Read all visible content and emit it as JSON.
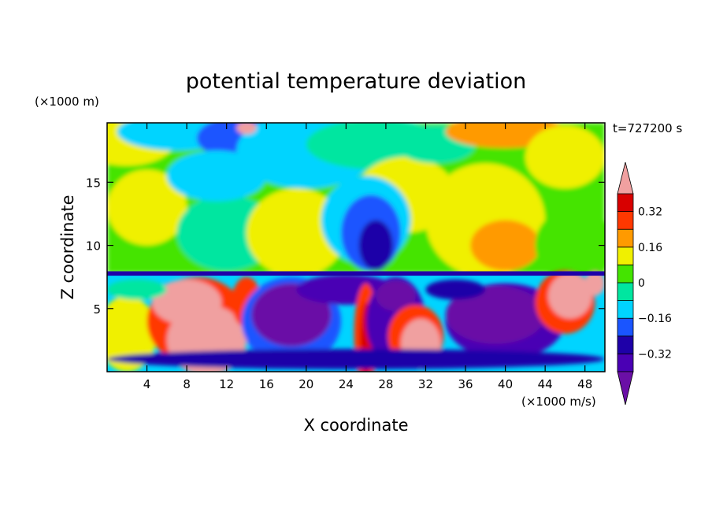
{
  "chart_data": {
    "type": "heatmap",
    "title": "potential temperature deviation",
    "xlabel": "X coordinate",
    "ylabel": "Z coordinate",
    "x_unit": "(×1000 m/s)",
    "y_unit": "(×1000 m)",
    "time_label": "t=727200 s",
    "xlim": [
      0,
      50
    ],
    "ylim": [
      0,
      19.7
    ],
    "x_ticks": [
      4,
      8,
      12,
      16,
      20,
      24,
      28,
      32,
      36,
      40,
      44,
      48
    ],
    "y_ticks": [
      5,
      10,
      15
    ],
    "colorbar": {
      "levels": [
        -0.4,
        -0.32,
        -0.24,
        -0.16,
        -0.08,
        0,
        0.08,
        0.16,
        0.24,
        0.32,
        0.4
      ],
      "labeled_levels": [
        0.32,
        0.16,
        0,
        -0.16,
        -0.32
      ],
      "colors": [
        "#6a0fa6",
        "#4a00b4",
        "#1e00a8",
        "#1a55ff",
        "#00d4ff",
        "#00e6a0",
        "#44e400",
        "#f0f000",
        "#ff9a00",
        "#ff3800",
        "#d80000",
        "#f0a0a0"
      ]
    },
    "features": [
      {
        "x_range": [
          0,
          50
        ],
        "z_range": [
          10,
          19.7
        ],
        "description": "upper layer mostly near zero (green) with broad weak positive and negative banding"
      },
      {
        "x_range": [
          22,
          30
        ],
        "z_range": [
          7.8,
          14
        ],
        "description": "negative anomaly column (blue)"
      },
      {
        "x_range": [
          34,
          44
        ],
        "z_range": [
          8,
          16
        ],
        "description": "positive anomaly (yellow/orange)"
      },
      {
        "x_range": [
          0,
          50
        ],
        "z_range": [
          0,
          7.8
        ],
        "description": "lower layer with strong positive (pink) and negative (purple) eddies"
      }
    ]
  }
}
